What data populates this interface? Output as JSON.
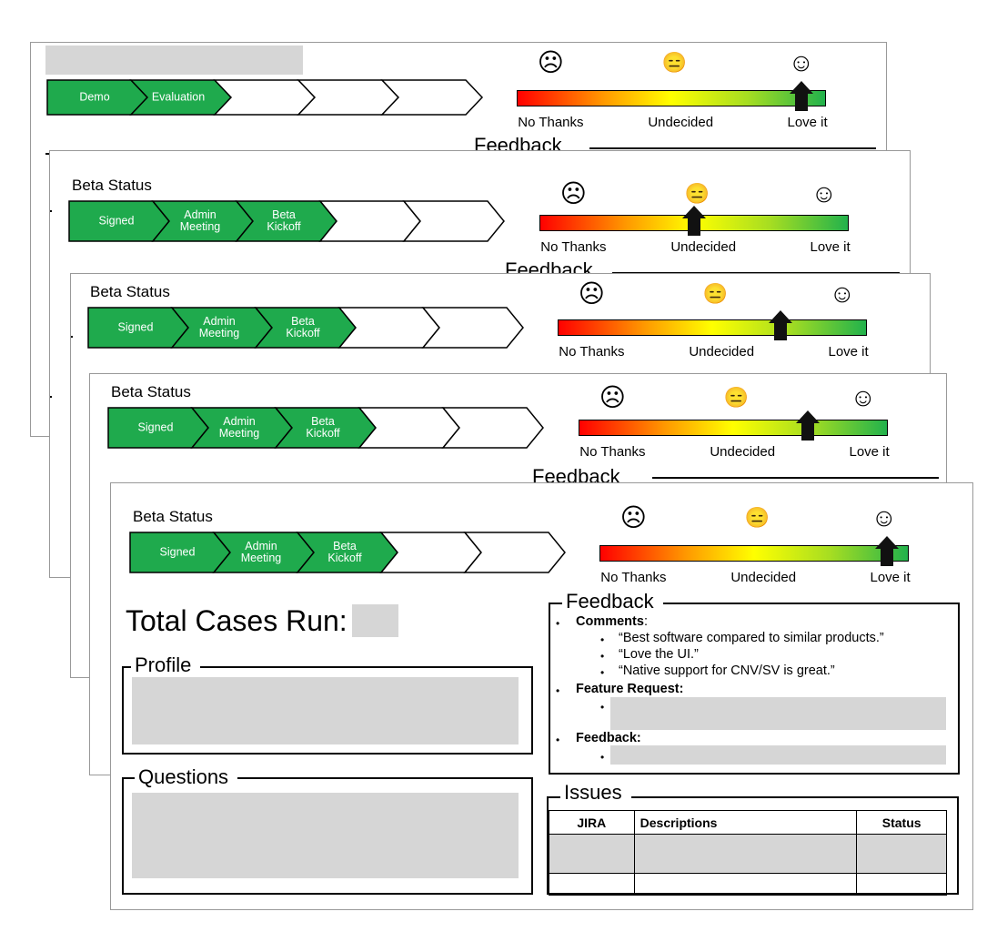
{
  "colors": {
    "chevron_fill": "#1faa4d",
    "redaction": "#d6d6d6",
    "gradient": [
      "#ff0000",
      "#ffff00",
      "#22b24c"
    ]
  },
  "icons": {
    "sad": "☹",
    "neutral": "😑",
    "happy": "☺"
  },
  "scale": {
    "left": "No Thanks",
    "middle": "Undecided",
    "right": "Love it"
  },
  "feedback_section_title": "Feedback",
  "cards": [
    {
      "title": "",
      "stages": [
        "Demo",
        "Evaluation"
      ],
      "pointer_position": 0.92
    },
    {
      "title": "Beta Status",
      "stages": [
        "Signed",
        "Admin\nMeeting",
        "Beta\nKickoff"
      ],
      "pointer_position": 0.5
    },
    {
      "title": "Beta Status",
      "stages": [
        "Signed",
        "Admin\nMeeting",
        "Beta\nKickoff"
      ],
      "pointer_position": 0.72
    },
    {
      "title": "Beta Status",
      "stages": [
        "Signed",
        "Admin\nMeeting",
        "Beta\nKickoff"
      ],
      "pointer_position": 0.74
    },
    {
      "title": "Beta Status",
      "stages": [
        "Signed",
        "Admin\nMeeting",
        "Beta\nKickoff"
      ],
      "pointer_position": 0.93
    }
  ],
  "front": {
    "total_cases_label": "Total Cases Run:",
    "profile_title": "Profile",
    "questions_title": "Questions",
    "feedback": {
      "title": "Feedback",
      "comments_label": "Comments",
      "comments_colon": ":",
      "comments": [
        "“Best software compared to similar products.”",
        "“Love the UI.”",
        "“Native support for CNV/SV is great.”"
      ],
      "feature_request_label": "Feature Request:",
      "feedback_label": "Feedback:",
      "bullet": "•"
    },
    "issues": {
      "title": "Issues",
      "columns": [
        "JIRA",
        "Descriptions",
        "Status"
      ]
    }
  }
}
